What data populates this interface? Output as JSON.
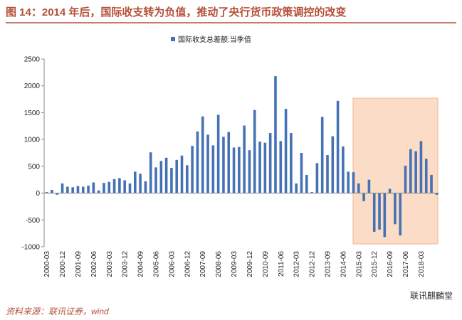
{
  "chart_data": {
    "type": "bar",
    "title": "图 14：2014 年后，国际收支转为负值，推动了央行货币政策调控的改变",
    "source": "资料来源：联讯证券，wind",
    "watermark": "联讯麒麟堂",
    "categories": [
      "2000-03",
      null,
      null,
      "2000-12",
      null,
      null,
      "2001-09",
      null,
      null,
      "2002-06",
      null,
      null,
      "2003-03",
      null,
      null,
      "2003-12",
      null,
      null,
      "2004-09",
      null,
      null,
      "2005-06",
      null,
      null,
      "2006-03",
      null,
      null,
      "2006-12",
      null,
      null,
      "2007-09",
      null,
      null,
      "2008-06",
      null,
      null,
      "2009-03",
      null,
      null,
      "2009-12",
      null,
      null,
      "2010-09",
      null,
      null,
      "2011-06",
      null,
      null,
      "2012-03",
      null,
      null,
      "2012-12",
      null,
      null,
      "2013-09",
      null,
      null,
      "2014-06",
      null,
      null,
      "2015-03",
      null,
      null,
      "2015-12",
      null,
      null,
      "2016-09",
      null,
      null,
      "2017-06",
      null,
      null,
      "2018-03",
      null,
      null,
      null
    ],
    "series": [
      {
        "name": "国际收支总差额:当季值",
        "color": "#4472b4",
        "values": [
          20,
          60,
          -30,
          180,
          120,
          110,
          130,
          120,
          140,
          200,
          50,
          190,
          210,
          260,
          280,
          240,
          180,
          400,
          360,
          220,
          760,
          480,
          600,
          660,
          470,
          620,
          700,
          520,
          880,
          1150,
          1430,
          1090,
          890,
          1460,
          1050,
          1140,
          850,
          860,
          1260,
          800,
          1550,
          960,
          940,
          1120,
          2180,
          970,
          1570,
          1120,
          180,
          750,
          340,
          20,
          560,
          1420,
          710,
          1060,
          1720,
          870,
          400,
          390,
          180,
          -150,
          250,
          -720,
          -680,
          -820,
          80,
          -580,
          -790,
          510,
          820,
          780,
          970,
          640,
          340,
          -30
        ]
      }
    ],
    "ylim": [
      -1000,
      2500
    ],
    "yticks": [
      -1000,
      -500,
      0,
      500,
      1000,
      1500,
      2000,
      2500
    ],
    "legend": "top"
  }
}
